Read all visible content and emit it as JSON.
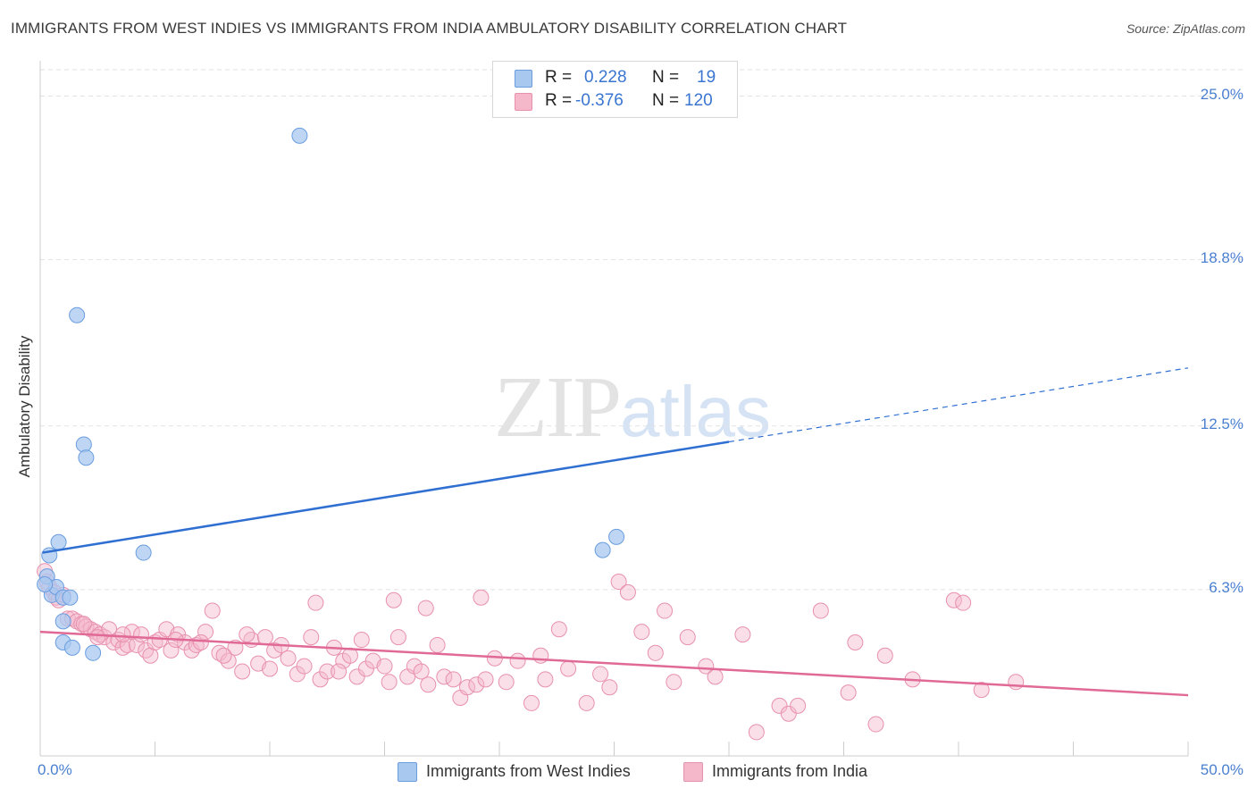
{
  "title": "IMMIGRANTS FROM WEST INDIES VS IMMIGRANTS FROM INDIA AMBULATORY DISABILITY CORRELATION CHART",
  "source": "Source: ZipAtlas.com",
  "watermark": {
    "zip": "ZIP",
    "atlas": "atlas"
  },
  "stats": [
    {
      "r_label": "R =",
      "r_value": "0.228",
      "n_label": "N =",
      "n_value": "19",
      "color": "#a8c8f0"
    },
    {
      "r_label": "R =",
      "r_value": "-0.376",
      "n_label": "N =",
      "n_value": "120",
      "color": "#f5b8cb"
    }
  ],
  "legend": [
    {
      "label": "Immigrants from West Indies",
      "color": "#a8c8f0"
    },
    {
      "label": "Immigrants from India",
      "color": "#f5b8cb"
    }
  ],
  "chart_data": {
    "type": "scatter",
    "title": "IMMIGRANTS FROM WEST INDIES VS IMMIGRANTS FROM INDIA AMBULATORY DISABILITY CORRELATION CHART",
    "ylabel": "Ambulatory Disability",
    "xlabel": "",
    "xlim": [
      0,
      50
    ],
    "ylim": [
      0,
      26
    ],
    "x_tick_labels": [
      "0.0%",
      "50.0%"
    ],
    "y_ticks": [
      6.3,
      12.5,
      18.8,
      25.0
    ],
    "y_tick_labels": [
      "6.3%",
      "12.5%",
      "18.8%",
      "25.0%"
    ],
    "grid": true,
    "legend_position": "bottom",
    "series": [
      {
        "name": "Immigrants from West Indies",
        "color": "#a8c8f0",
        "stroke": "#6a9de0",
        "trend_color": "#2f6fd2",
        "trend": {
          "x0": 0.1,
          "y0": 7.7,
          "x1": 30.0,
          "y1": 11.9,
          "dashed_to_x": 50.0,
          "dashed_to_y": 14.7
        },
        "points": [
          [
            0.3,
            6.8
          ],
          [
            0.4,
            7.6
          ],
          [
            0.5,
            6.1
          ],
          [
            0.7,
            6.4
          ],
          [
            0.8,
            8.1
          ],
          [
            1.0,
            6.0
          ],
          [
            1.0,
            5.1
          ],
          [
            1.0,
            4.3
          ],
          [
            1.3,
            6.0
          ],
          [
            1.4,
            4.1
          ],
          [
            1.6,
            16.7
          ],
          [
            1.9,
            11.8
          ],
          [
            2.0,
            11.3
          ],
          [
            2.3,
            3.9
          ],
          [
            4.5,
            7.7
          ],
          [
            11.3,
            23.5
          ],
          [
            24.5,
            7.8
          ],
          [
            25.1,
            8.3
          ],
          [
            0.2,
            6.5
          ]
        ]
      },
      {
        "name": "Immigrants from India",
        "color": "#f5b8cb",
        "stroke": "#e890ad",
        "trend_color": "#e06a95",
        "trend": {
          "x0": 0.0,
          "y0": 4.7,
          "x1": 50.0,
          "y1": 2.3
        },
        "points": [
          [
            0.2,
            7.0
          ],
          [
            0.3,
            6.6
          ],
          [
            0.4,
            6.4
          ],
          [
            0.6,
            6.2
          ],
          [
            0.7,
            6.0
          ],
          [
            0.8,
            5.9
          ],
          [
            1.0,
            6.1
          ],
          [
            1.2,
            5.2
          ],
          [
            1.4,
            5.2
          ],
          [
            1.6,
            5.1
          ],
          [
            1.8,
            5.0
          ],
          [
            2.0,
            4.9
          ],
          [
            2.2,
            4.8
          ],
          [
            2.4,
            4.7
          ],
          [
            2.6,
            4.6
          ],
          [
            2.8,
            4.5
          ],
          [
            3.0,
            4.8
          ],
          [
            3.2,
            4.3
          ],
          [
            3.4,
            4.4
          ],
          [
            3.6,
            4.1
          ],
          [
            3.8,
            4.2
          ],
          [
            4.0,
            4.7
          ],
          [
            4.2,
            4.2
          ],
          [
            4.4,
            4.6
          ],
          [
            4.6,
            4.0
          ],
          [
            4.8,
            3.8
          ],
          [
            5.0,
            4.3
          ],
          [
            5.2,
            4.4
          ],
          [
            5.5,
            4.8
          ],
          [
            5.7,
            4.0
          ],
          [
            6.0,
            4.6
          ],
          [
            6.3,
            4.3
          ],
          [
            6.6,
            4.0
          ],
          [
            6.8,
            4.2
          ],
          [
            7.2,
            4.7
          ],
          [
            7.5,
            5.5
          ],
          [
            7.8,
            3.9
          ],
          [
            8.2,
            3.6
          ],
          [
            8.5,
            4.1
          ],
          [
            8.8,
            3.2
          ],
          [
            9.2,
            4.4
          ],
          [
            9.5,
            3.5
          ],
          [
            9.8,
            4.5
          ],
          [
            10.2,
            4.0
          ],
          [
            10.5,
            4.2
          ],
          [
            10.8,
            3.7
          ],
          [
            11.2,
            3.1
          ],
          [
            11.5,
            3.4
          ],
          [
            11.8,
            4.5
          ],
          [
            12.2,
            2.9
          ],
          [
            12.5,
            3.2
          ],
          [
            12.8,
            4.1
          ],
          [
            13.2,
            3.6
          ],
          [
            13.5,
            3.8
          ],
          [
            13.8,
            3.0
          ],
          [
            14.2,
            3.3
          ],
          [
            14.5,
            3.6
          ],
          [
            15.0,
            3.4
          ],
          [
            15.2,
            2.8
          ],
          [
            15.6,
            4.5
          ],
          [
            16.0,
            3.0
          ],
          [
            16.3,
            3.4
          ],
          [
            16.6,
            3.2
          ],
          [
            16.9,
            2.7
          ],
          [
            17.3,
            4.2
          ],
          [
            17.6,
            3.0
          ],
          [
            18.0,
            2.9
          ],
          [
            18.3,
            2.2
          ],
          [
            18.6,
            2.6
          ],
          [
            19.0,
            2.7
          ],
          [
            19.4,
            2.9
          ],
          [
            19.8,
            3.7
          ],
          [
            20.3,
            2.8
          ],
          [
            20.8,
            3.6
          ],
          [
            21.4,
            2.0
          ],
          [
            22.0,
            2.9
          ],
          [
            22.6,
            4.8
          ],
          [
            23.0,
            3.3
          ],
          [
            23.8,
            2.0
          ],
          [
            24.4,
            3.1
          ],
          [
            24.8,
            2.6
          ],
          [
            25.2,
            6.6
          ],
          [
            25.6,
            6.2
          ],
          [
            26.2,
            4.7
          ],
          [
            26.8,
            3.9
          ],
          [
            27.2,
            5.5
          ],
          [
            27.6,
            2.8
          ],
          [
            28.2,
            4.5
          ],
          [
            29.0,
            3.4
          ],
          [
            29.4,
            3.0
          ],
          [
            30.6,
            4.6
          ],
          [
            31.2,
            0.9
          ],
          [
            32.2,
            1.9
          ],
          [
            32.6,
            1.6
          ],
          [
            33.0,
            1.9
          ],
          [
            34.0,
            5.5
          ],
          [
            35.2,
            2.4
          ],
          [
            35.5,
            4.3
          ],
          [
            36.4,
            1.2
          ],
          [
            36.8,
            3.8
          ],
          [
            38.0,
            2.9
          ],
          [
            39.8,
            5.9
          ],
          [
            40.2,
            5.8
          ],
          [
            42.5,
            2.8
          ],
          [
            41.0,
            2.5
          ],
          [
            14.0,
            4.4
          ],
          [
            16.8,
            5.6
          ],
          [
            21.8,
            3.8
          ],
          [
            2.5,
            4.5
          ],
          [
            5.9,
            4.4
          ],
          [
            7.0,
            4.3
          ],
          [
            9.0,
            4.6
          ],
          [
            12.0,
            5.8
          ],
          [
            15.4,
            5.9
          ],
          [
            19.2,
            6.0
          ],
          [
            10.0,
            3.3
          ],
          [
            13.0,
            3.2
          ],
          [
            8.0,
            3.8
          ],
          [
            3.6,
            4.6
          ],
          [
            1.9,
            5.0
          ]
        ]
      }
    ]
  }
}
